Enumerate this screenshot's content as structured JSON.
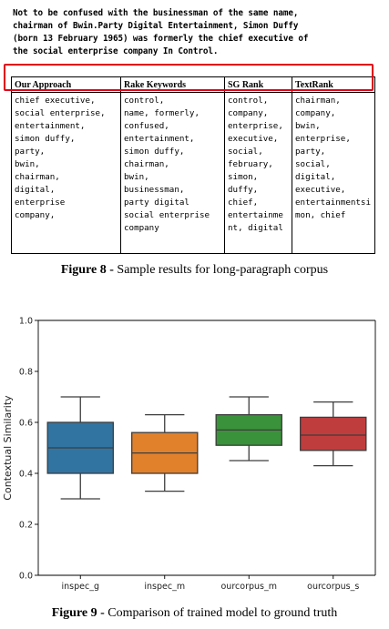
{
  "intro_lines": [
    "Not to be confused with the businessman of the same name,",
    "chairman of Bwin.Party Digital Entertainment, Simon Duffy",
    "(born 13 February 1965) was formerly the chief executive of",
    "the social enterprise company In Control."
  ],
  "table": {
    "headers": [
      "Our Approach",
      "Rake Keywords",
      "SG Rank",
      "TextRank"
    ],
    "columns": [
      [
        "chief executive,",
        "social enterprise,",
        "entertainment,",
        "simon duffy,",
        "party,",
        "bwin,",
        "chairman,",
        "digital,",
        "enterprise",
        "company,"
      ],
      [
        "control,",
        "name, formerly,",
        "confused,",
        "entertainment,",
        "simon duffy,",
        "chairman,",
        "bwin,",
        "businessman,",
        "party digital",
        "social enterprise",
        "company"
      ],
      [
        "control,",
        "company,",
        "enterprise,",
        "executive,",
        "social,",
        "february,",
        "simon,",
        "duffy,",
        "chief,",
        "entertainme",
        "nt, digital"
      ],
      [
        "chairman,",
        "company,",
        "bwin,",
        "enterprise,",
        "party,",
        "social,",
        "digital,",
        "executive,",
        "entertainmentsi",
        "mon, chief"
      ]
    ]
  },
  "fig8_caption": {
    "label": "Figure 8 -",
    "text": " Sample results for long-paragraph corpus"
  },
  "fig9_caption": {
    "label": "Figure 9 -",
    "text": " Comparison of trained model to ground truth"
  },
  "chart_data": {
    "type": "box",
    "title": "",
    "xlabel": "",
    "ylabel": "Contextual Similarity",
    "ylim": [
      0.0,
      1.0
    ],
    "yticks": [
      "0.0",
      "0.2",
      "0.4",
      "0.6",
      "0.8",
      "1.0"
    ],
    "grid": false,
    "categories": [
      "inspec_g",
      "inspec_m",
      "ourcorpus_m",
      "ourcorpus_s"
    ],
    "boxes": [
      {
        "category": "inspec_g",
        "whisker_low": 0.3,
        "q1": 0.4,
        "median": 0.5,
        "q3": 0.6,
        "whisker_high": 0.7,
        "color": "#3274a1"
      },
      {
        "category": "inspec_m",
        "whisker_low": 0.33,
        "q1": 0.4,
        "median": 0.48,
        "q3": 0.56,
        "whisker_high": 0.63,
        "color": "#e1812c"
      },
      {
        "category": "ourcorpus_m",
        "whisker_low": 0.45,
        "q1": 0.51,
        "median": 0.57,
        "q3": 0.63,
        "whisker_high": 0.7,
        "color": "#3a923a"
      },
      {
        "category": "ourcorpus_s",
        "whisker_low": 0.43,
        "q1": 0.49,
        "median": 0.55,
        "q3": 0.62,
        "whisker_high": 0.68,
        "color": "#c03d3e"
      }
    ]
  }
}
